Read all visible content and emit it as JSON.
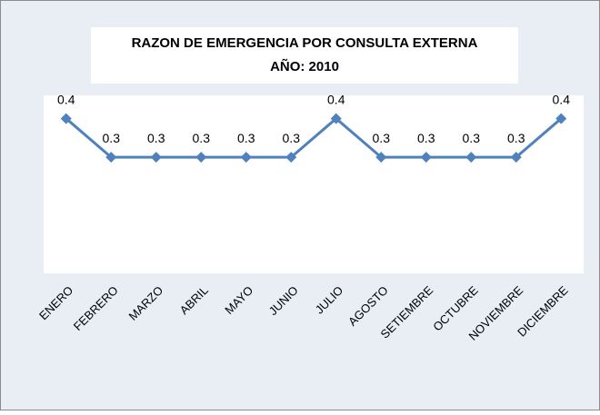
{
  "chart_data": {
    "type": "line",
    "title": "RAZON DE EMERGENCIA POR CONSULTA EXTERNA",
    "subtitle": "AÑO: 2010",
    "categories": [
      "ENERO",
      "FEBRERO",
      "MARZO",
      "ABRIL",
      "MAYO",
      "JUNIO",
      "JULIO",
      "AGOSTO",
      "SETIEMBRE",
      "OCTUBRE",
      "NOVIEMBRE",
      "DICIEMBRE"
    ],
    "values": [
      0.4,
      0.3,
      0.3,
      0.3,
      0.3,
      0.3,
      0.4,
      0.3,
      0.3,
      0.3,
      0.3,
      0.4
    ],
    "color": "#4f81bd",
    "ylim": [
      0,
      0.46
    ]
  }
}
